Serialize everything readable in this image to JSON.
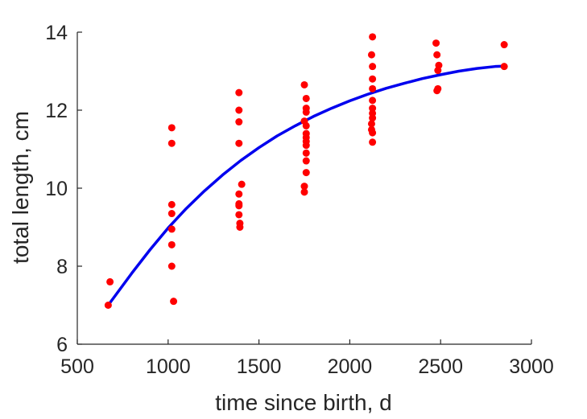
{
  "chart_data": {
    "type": "scatter",
    "xlabel": "time since birth, d",
    "ylabel": "total length, cm",
    "xlim": [
      500,
      3000
    ],
    "ylim": [
      6,
      14
    ],
    "x_ticks": [
      "500",
      "1000",
      "1500",
      "2000",
      "2500",
      "3000"
    ],
    "y_ticks": [
      "6",
      "8",
      "10",
      "12",
      "14"
    ],
    "grid": false,
    "legend": "none",
    "colors": {
      "points": "#ff0000",
      "fit": "#0000ee",
      "axis": "#262626"
    },
    "series": [
      {
        "kind": "scatter",
        "points": [
          [
            670,
            7.0
          ],
          [
            680,
            7.6
          ],
          [
            1020,
            11.55
          ],
          [
            1020,
            11.15
          ],
          [
            1020,
            9.58
          ],
          [
            1020,
            9.35
          ],
          [
            1020,
            8.95
          ],
          [
            1020,
            8.55
          ],
          [
            1020,
            8.0
          ],
          [
            1030,
            7.1
          ],
          [
            1390,
            12.45
          ],
          [
            1390,
            12.0
          ],
          [
            1390,
            11.7
          ],
          [
            1390,
            11.15
          ],
          [
            1390,
            9.85
          ],
          [
            1390,
            9.6
          ],
          [
            1390,
            9.55
          ],
          [
            1390,
            9.32
          ],
          [
            1395,
            9.1
          ],
          [
            1395,
            9.0
          ],
          [
            1405,
            10.1
          ],
          [
            1750,
            12.65
          ],
          [
            1760,
            12.3
          ],
          [
            1760,
            12.05
          ],
          [
            1760,
            11.95
          ],
          [
            1750,
            11.72
          ],
          [
            1760,
            11.6
          ],
          [
            1760,
            11.4
          ],
          [
            1760,
            11.3
          ],
          [
            1760,
            11.2
          ],
          [
            1760,
            11.1
          ],
          [
            1760,
            10.9
          ],
          [
            1760,
            10.7
          ],
          [
            1760,
            10.4
          ],
          [
            1750,
            10.05
          ],
          [
            1750,
            9.9
          ],
          [
            2125,
            13.88
          ],
          [
            2120,
            13.42
          ],
          [
            2125,
            13.12
          ],
          [
            2125,
            12.8
          ],
          [
            2125,
            12.55
          ],
          [
            2125,
            12.25
          ],
          [
            2125,
            12.05
          ],
          [
            2125,
            11.92
          ],
          [
            2125,
            11.8
          ],
          [
            2120,
            11.65
          ],
          [
            2120,
            11.5
          ],
          [
            2125,
            11.42
          ],
          [
            2125,
            11.18
          ],
          [
            2475,
            13.72
          ],
          [
            2480,
            13.42
          ],
          [
            2490,
            13.15
          ],
          [
            2485,
            13.02
          ],
          [
            2485,
            12.55
          ],
          [
            2480,
            12.5
          ],
          [
            2850,
            13.68
          ],
          [
            2850,
            13.12
          ]
        ]
      },
      {
        "kind": "line",
        "points": [
          [
            670,
            7.0
          ],
          [
            800,
            7.82
          ],
          [
            900,
            8.42
          ],
          [
            1000,
            8.98
          ],
          [
            1100,
            9.48
          ],
          [
            1200,
            9.93
          ],
          [
            1300,
            10.34
          ],
          [
            1400,
            10.71
          ],
          [
            1500,
            11.04
          ],
          [
            1600,
            11.34
          ],
          [
            1700,
            11.6
          ],
          [
            1800,
            11.84
          ],
          [
            1900,
            12.05
          ],
          [
            2000,
            12.24
          ],
          [
            2100,
            12.41
          ],
          [
            2200,
            12.56
          ],
          [
            2300,
            12.69
          ],
          [
            2400,
            12.81
          ],
          [
            2500,
            12.91
          ],
          [
            2600,
            13.0
          ],
          [
            2700,
            13.07
          ],
          [
            2800,
            13.12
          ],
          [
            2850,
            13.13
          ]
        ]
      }
    ]
  }
}
